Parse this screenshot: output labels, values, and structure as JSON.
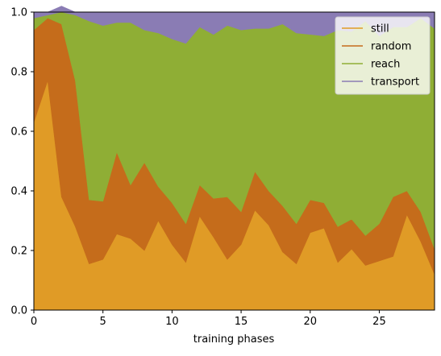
{
  "chart_data": {
    "type": "area",
    "stacked": true,
    "normalized": true,
    "x": [
      0,
      1,
      2,
      3,
      4,
      5,
      6,
      7,
      8,
      9,
      10,
      11,
      12,
      13,
      14,
      15,
      16,
      17,
      18,
      19,
      20,
      21,
      22,
      23,
      24,
      25,
      26,
      27,
      28,
      29
    ],
    "series": [
      {
        "name": "still",
        "color": "#e09b26",
        "values": [
          0.63,
          0.77,
          0.38,
          0.28,
          0.155,
          0.17,
          0.255,
          0.24,
          0.2,
          0.3,
          0.22,
          0.16,
          0.315,
          0.245,
          0.17,
          0.22,
          0.335,
          0.285,
          0.195,
          0.155,
          0.26,
          0.275,
          0.16,
          0.205,
          0.15,
          0.165,
          0.18,
          0.32,
          0.23,
          0.12
        ]
      },
      {
        "name": "random",
        "color": "#c56c1b",
        "values": [
          0.31,
          0.21,
          0.58,
          0.49,
          0.215,
          0.195,
          0.275,
          0.18,
          0.295,
          0.115,
          0.14,
          0.13,
          0.105,
          0.13,
          0.21,
          0.11,
          0.13,
          0.115,
          0.155,
          0.135,
          0.11,
          0.085,
          0.12,
          0.1,
          0.1,
          0.125,
          0.2,
          0.08,
          0.1,
          0.085
        ]
      },
      {
        "name": "reach",
        "color": "#8fae35",
        "values": [
          0.04,
          0.01,
          0.04,
          0.22,
          0.6,
          0.59,
          0.435,
          0.545,
          0.445,
          0.515,
          0.55,
          0.605,
          0.53,
          0.55,
          0.575,
          0.61,
          0.48,
          0.545,
          0.61,
          0.64,
          0.555,
          0.56,
          0.66,
          0.63,
          0.72,
          0.63,
          0.57,
          0.55,
          0.65,
          0.74
        ]
      },
      {
        "name": "transport",
        "color": "#8a7cb4",
        "values": [
          0.02,
          0.01,
          0.02,
          0.01,
          0.03,
          0.045,
          0.035,
          0.035,
          0.06,
          0.07,
          0.09,
          0.105,
          0.05,
          0.075,
          0.045,
          0.06,
          0.055,
          0.055,
          0.04,
          0.07,
          0.075,
          0.08,
          0.06,
          0.065,
          0.03,
          0.08,
          0.05,
          0.05,
          0.02,
          0.055
        ]
      }
    ],
    "xlabel": "training phases",
    "ylabel": "",
    "xlim": [
      0,
      29
    ],
    "ylim": [
      0,
      1
    ],
    "xticks": [
      "0",
      "5",
      "10",
      "15",
      "20",
      "25"
    ],
    "yticks": [
      "0.0",
      "0.2",
      "0.4",
      "0.6",
      "0.8",
      "1.0"
    ],
    "legend_position": "top-right",
    "grid": false
  }
}
